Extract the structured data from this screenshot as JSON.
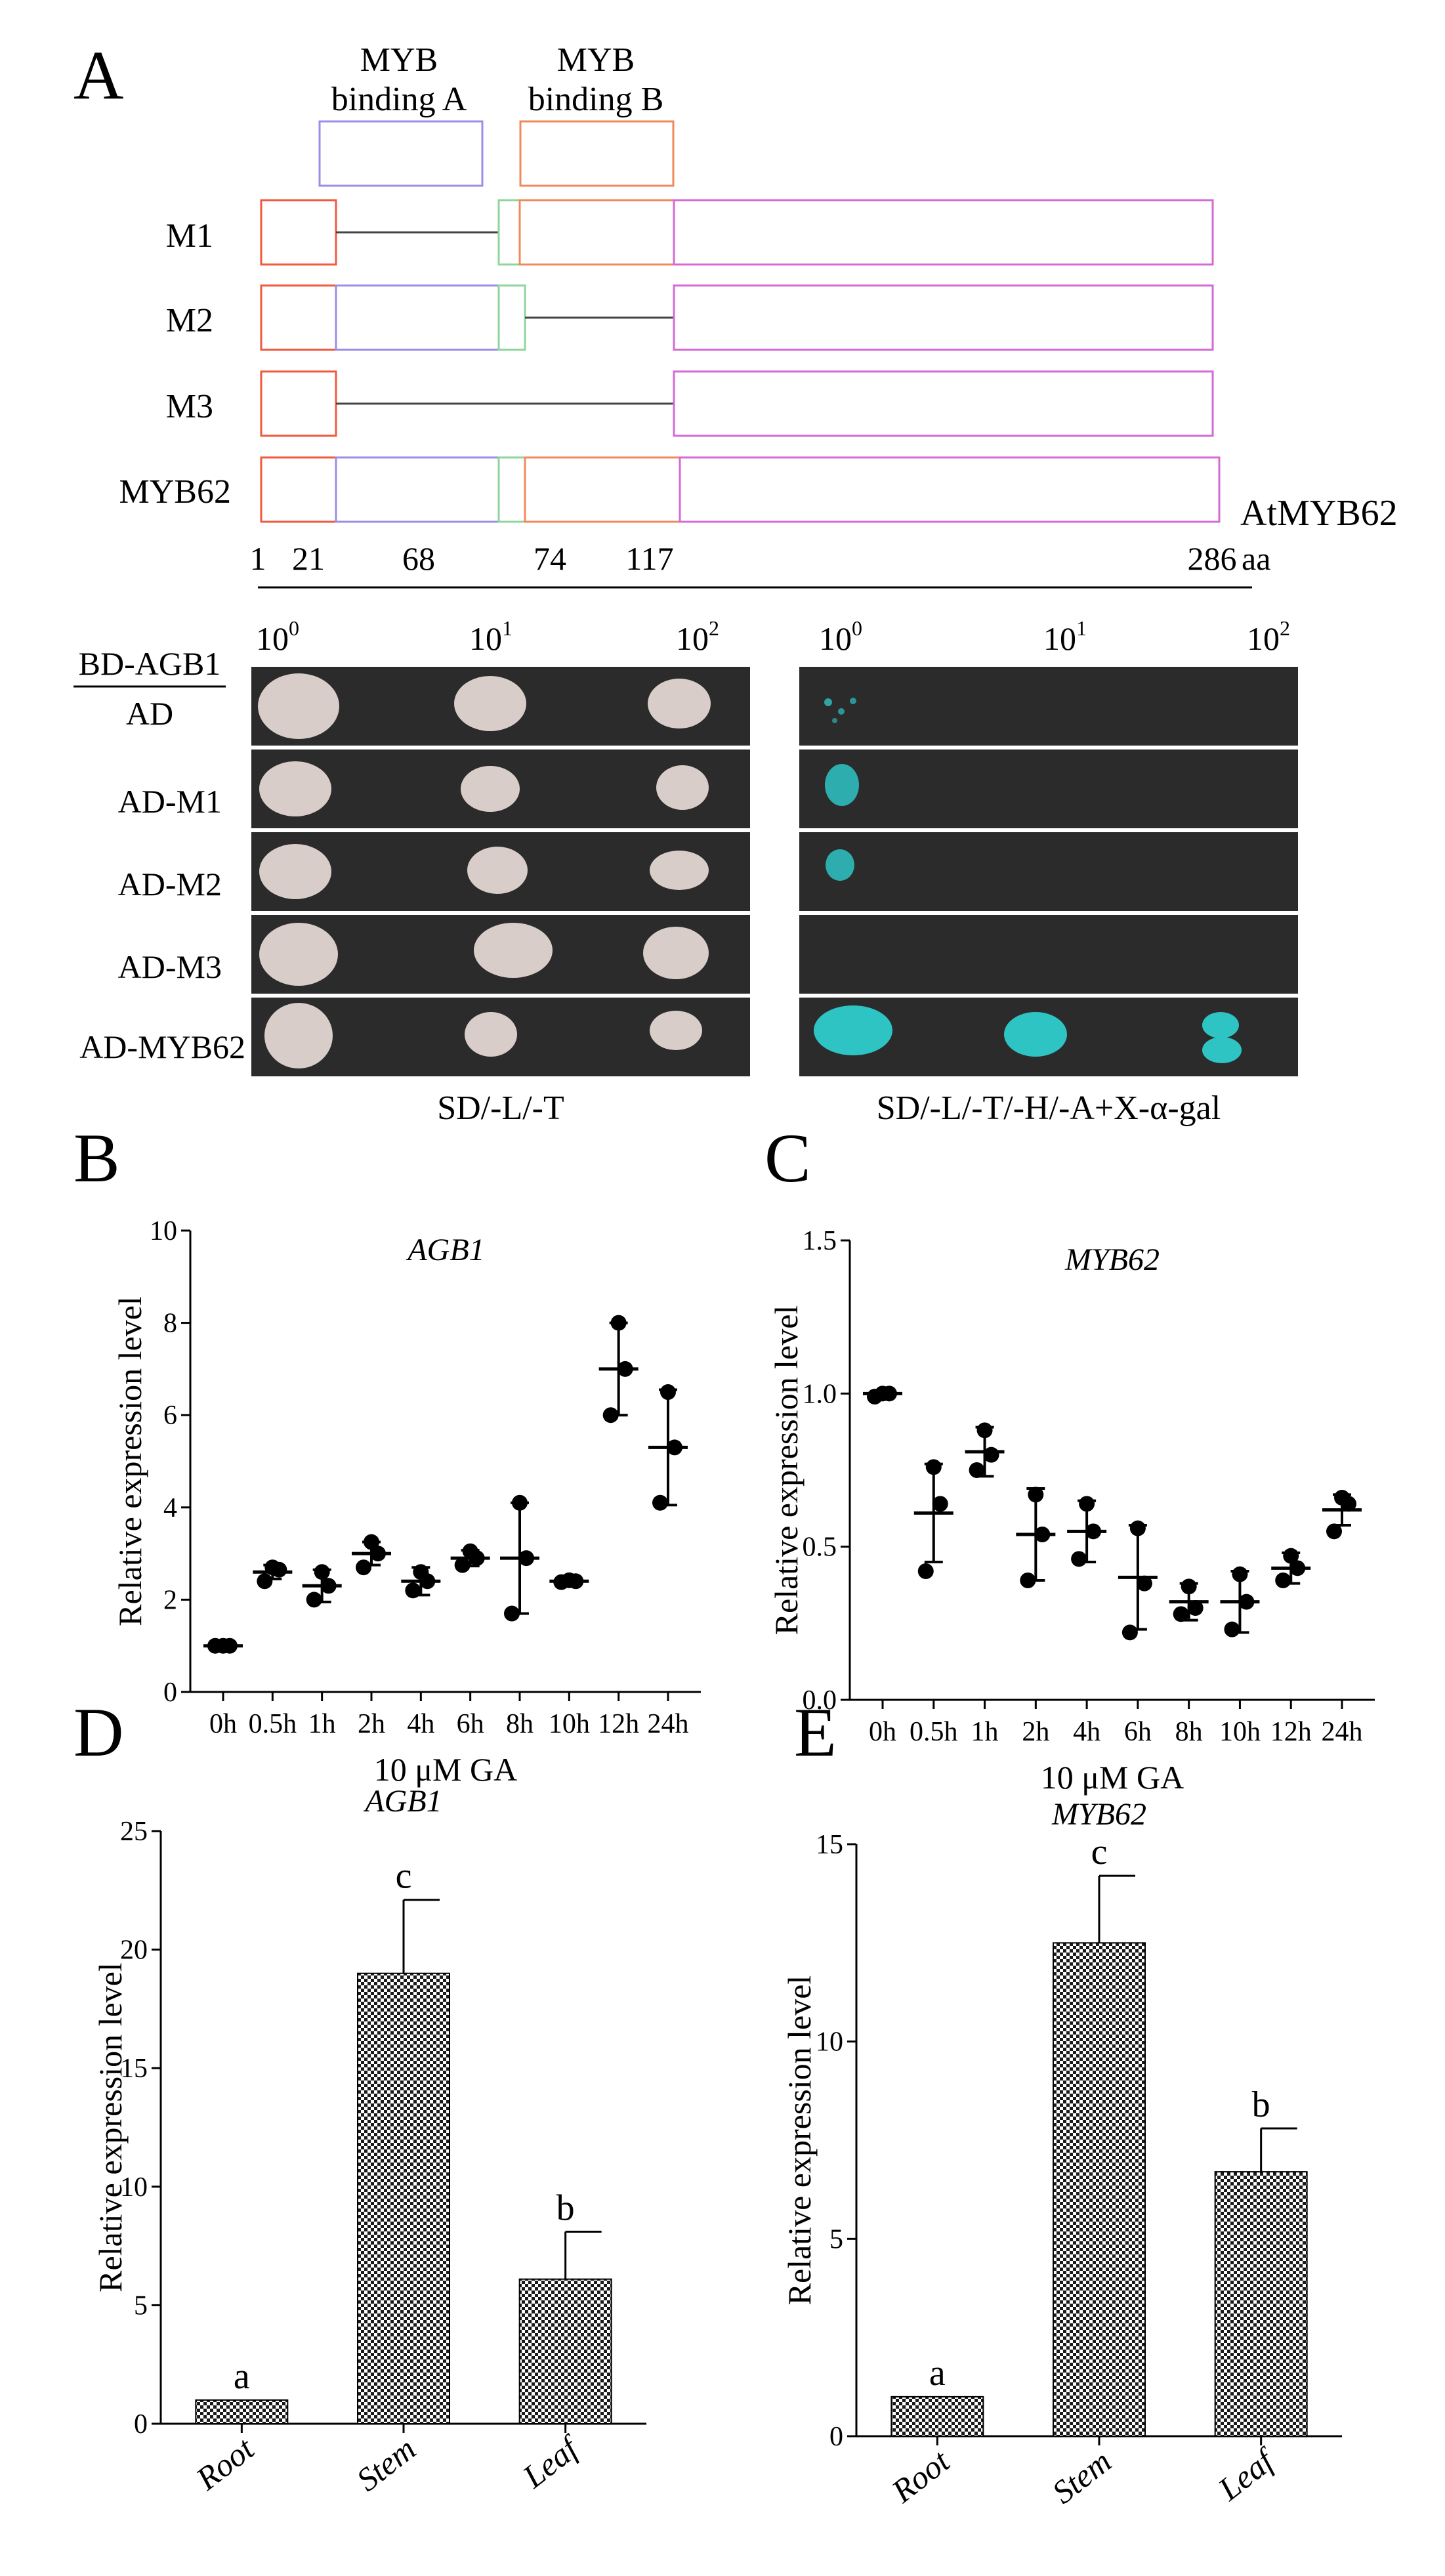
{
  "panels": {
    "A": {
      "letter": "A",
      "domain_labels": {
        "a_line1": "MYB",
        "a_line2": "binding A",
        "b_line1": "MYB",
        "b_line2": "binding B"
      },
      "constructs": [
        "M1",
        "M2",
        "M3",
        "MYB62"
      ],
      "protein_label": "AtMYB62",
      "positions": [
        "1",
        "21",
        "68",
        "74",
        "117",
        "286"
      ],
      "positions_unit": "aa",
      "dilution_base": "10",
      "dilution_exponents": [
        "0",
        "1",
        "2"
      ],
      "bait": "BD-AGB1",
      "preys": [
        "AD",
        "AD-M1",
        "AD-M2",
        "AD-M3",
        "AD-MYB62"
      ],
      "media": [
        "SD/-L/-T",
        "SD/-L/-T/-H/-A+X-α-gal"
      ],
      "colors": {
        "domain_a": "#9a8ee6",
        "domain_b": "#f08a5d",
        "linker": "#8ed69b",
        "n_term": "#f05a3e",
        "c_term": "#d46ad6",
        "colony": "#d8cdc9",
        "blue_colony": "#2ec4c4",
        "plate": "#2b2b2b"
      }
    },
    "B": {
      "letter": "B",
      "chart_data": {
        "type": "scatter",
        "title": "AGB1",
        "xlabel": "10 μM GA",
        "ylabel": "Relative expression level",
        "categories": [
          "0h",
          "0.5h",
          "1h",
          "2h",
          "4h",
          "6h",
          "8h",
          "10h",
          "12h",
          "24h"
        ],
        "ylim": [
          0,
          10
        ],
        "yticks": [
          "0",
          "2",
          "4",
          "6",
          "8",
          "10"
        ],
        "means": [
          1.0,
          2.6,
          2.3,
          3.0,
          2.4,
          2.9,
          2.9,
          2.4,
          7.0,
          5.3
        ],
        "sd": [
          0.02,
          0.15,
          0.35,
          0.25,
          0.3,
          0.17,
          1.2,
          0.05,
          1.0,
          1.25
        ],
        "points": [
          [
            1.0,
            1.0,
            1.0
          ],
          [
            2.4,
            2.65,
            2.7
          ],
          [
            2.0,
            2.3,
            2.6
          ],
          [
            2.7,
            3.0,
            3.25
          ],
          [
            2.2,
            2.4,
            2.6
          ],
          [
            2.75,
            2.9,
            3.05
          ],
          [
            1.7,
            2.9,
            4.1
          ],
          [
            2.38,
            2.4,
            2.42
          ],
          [
            6.0,
            7.0,
            8.0
          ],
          [
            4.1,
            5.3,
            6.5
          ]
        ]
      }
    },
    "C": {
      "letter": "C",
      "chart_data": {
        "type": "scatter",
        "title": "MYB62",
        "xlabel": "10 μM GA",
        "ylabel": "Relative expression level",
        "categories": [
          "0h",
          "0.5h",
          "1h",
          "2h",
          "4h",
          "6h",
          "8h",
          "10h",
          "12h",
          "24h"
        ],
        "ylim": [
          0,
          1.5
        ],
        "yticks": [
          "0.0",
          "0.5",
          "1.0",
          "1.5"
        ],
        "means": [
          1.0,
          0.61,
          0.81,
          0.54,
          0.55,
          0.4,
          0.32,
          0.32,
          0.43,
          0.62
        ],
        "sd": [
          0.005,
          0.16,
          0.08,
          0.15,
          0.1,
          0.17,
          0.06,
          0.1,
          0.05,
          0.05
        ],
        "points": [
          [
            0.99,
            1.0,
            1.0
          ],
          [
            0.42,
            0.64,
            0.76
          ],
          [
            0.75,
            0.8,
            0.88
          ],
          [
            0.39,
            0.54,
            0.67
          ],
          [
            0.46,
            0.55,
            0.64
          ],
          [
            0.22,
            0.38,
            0.56
          ],
          [
            0.28,
            0.3,
            0.37
          ],
          [
            0.23,
            0.32,
            0.41
          ],
          [
            0.39,
            0.43,
            0.47
          ],
          [
            0.55,
            0.64,
            0.66
          ]
        ]
      }
    },
    "D": {
      "letter": "D",
      "chart_data": {
        "type": "bar",
        "title": "AGB1",
        "ylabel": "Relative expression level",
        "categories": [
          "Root",
          "Stem",
          "Leaf"
        ],
        "values": [
          1.0,
          19.0,
          6.1
        ],
        "errors": [
          0,
          3.1,
          2.0
        ],
        "significance": [
          "a",
          "c",
          "b"
        ],
        "ylim": [
          0,
          25
        ],
        "yticks": [
          "0",
          "5",
          "10",
          "15",
          "20",
          "25"
        ]
      }
    },
    "E": {
      "letter": "E",
      "chart_data": {
        "type": "bar",
        "title": "MYB62",
        "ylabel": "Relative expression level",
        "categories": [
          "Root",
          "Stem",
          "Leaf"
        ],
        "values": [
          1.0,
          12.5,
          6.7
        ],
        "errors": [
          0,
          1.7,
          1.1
        ],
        "significance": [
          "a",
          "c",
          "b"
        ],
        "ylim": [
          0,
          15
        ],
        "yticks": [
          "0",
          "5",
          "10",
          "15"
        ]
      }
    }
  }
}
